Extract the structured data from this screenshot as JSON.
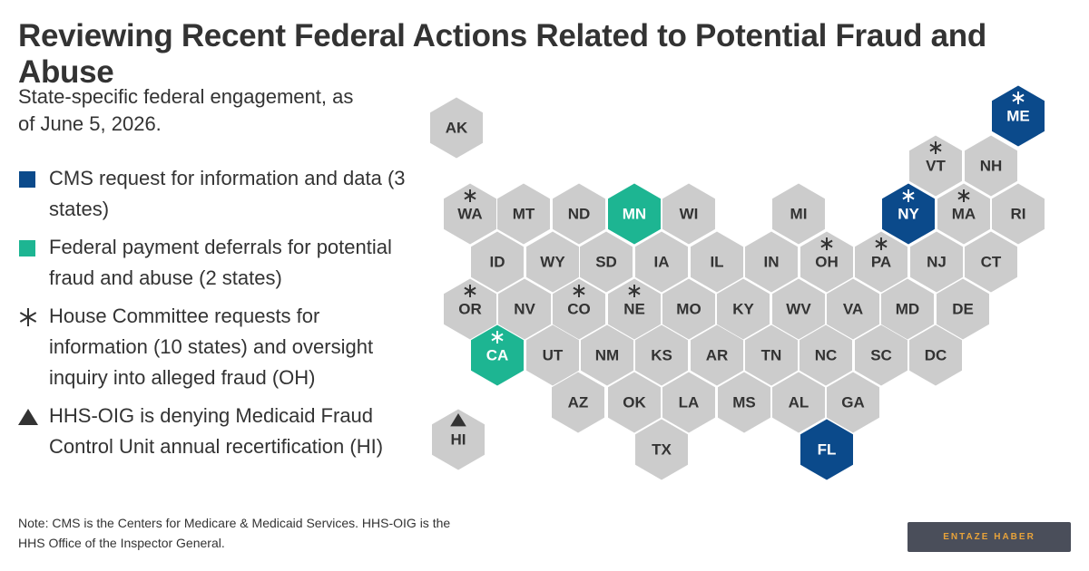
{
  "header": {
    "title": "Reviewing Recent Federal Actions Related to Potential Fraud and Abuse",
    "subtitle": "State-specific federal engagement, as of June 5, 2026."
  },
  "legend": [
    {
      "marker": "square",
      "color": "#0b4a8b",
      "text": "CMS request for information and data (3 states)"
    },
    {
      "marker": "square",
      "color": "#1db592",
      "text": "Federal payment deferrals for potential fraud and abuse (2 states)"
    },
    {
      "marker": "asterisk",
      "color": "#333333",
      "text": "House Committee requests for information (10 states) and oversight inquiry into alleged fraud (OH)"
    },
    {
      "marker": "triangle",
      "color": "#333333",
      "text": "HHS-OIG is denying Medicaid Fraud Control Unit annual recertification (HI)"
    }
  ],
  "map": {
    "default_color": "#cccccc",
    "states": [
      {
        "label": "AK"
      },
      {
        "label": "ME",
        "color": "#0b4a8b",
        "asterisk": true
      },
      {
        "label": "VT",
        "asterisk": true
      },
      {
        "label": "NH"
      },
      {
        "label": "WA",
        "asterisk": true
      },
      {
        "label": "MT"
      },
      {
        "label": "ND"
      },
      {
        "label": "MN",
        "color": "#1db592"
      },
      {
        "label": "WI"
      },
      {
        "label": "MI"
      },
      {
        "label": "NY",
        "color": "#0b4a8b",
        "asterisk": true
      },
      {
        "label": "MA",
        "asterisk": true
      },
      {
        "label": "RI"
      },
      {
        "label": "ID"
      },
      {
        "label": "WY"
      },
      {
        "label": "SD"
      },
      {
        "label": "IA"
      },
      {
        "label": "IL"
      },
      {
        "label": "IN"
      },
      {
        "label": "OH",
        "asterisk": true
      },
      {
        "label": "PA",
        "asterisk": true
      },
      {
        "label": "NJ"
      },
      {
        "label": "CT"
      },
      {
        "label": "OR",
        "asterisk": true
      },
      {
        "label": "NV"
      },
      {
        "label": "CO",
        "asterisk": true
      },
      {
        "label": "NE",
        "asterisk": true
      },
      {
        "label": "MO"
      },
      {
        "label": "KY"
      },
      {
        "label": "WV"
      },
      {
        "label": "VA"
      },
      {
        "label": "MD"
      },
      {
        "label": "DE"
      },
      {
        "label": "CA",
        "color": "#1db592",
        "asterisk": true
      },
      {
        "label": "UT"
      },
      {
        "label": "NM"
      },
      {
        "label": "KS"
      },
      {
        "label": "AR"
      },
      {
        "label": "TN"
      },
      {
        "label": "NC"
      },
      {
        "label": "SC"
      },
      {
        "label": "DC"
      },
      {
        "label": "AZ"
      },
      {
        "label": "OK"
      },
      {
        "label": "LA"
      },
      {
        "label": "MS"
      },
      {
        "label": "AL"
      },
      {
        "label": "GA"
      },
      {
        "label": "TX"
      },
      {
        "label": "FL",
        "color": "#0b4a8b"
      },
      {
        "label": "HI",
        "triangle": true
      }
    ]
  },
  "footer": {
    "note": "Note: CMS is the Centers for Medicare & Medicaid Services. HHS-OIG is the HHS Office of the Inspector General.",
    "badge": "ENTAZE HABER"
  }
}
